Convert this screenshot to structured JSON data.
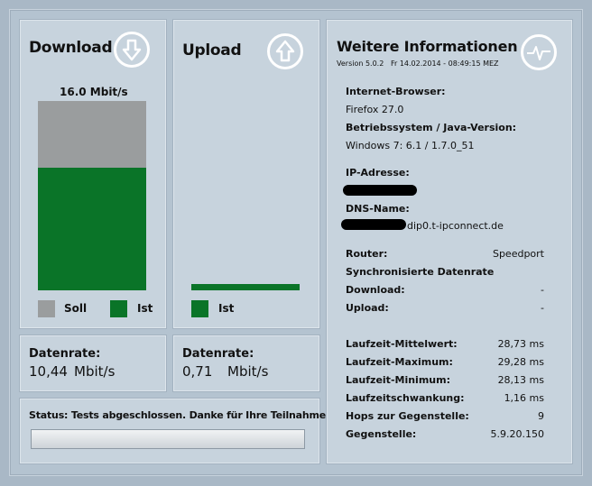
{
  "download": {
    "title": "Download",
    "icon": "download-arrow-icon",
    "speed_label": "16.0 Mbit/s",
    "measured_fraction": 0.65,
    "legend_soll": "Soll",
    "legend_ist": "Ist"
  },
  "upload": {
    "title": "Upload",
    "icon": "upload-arrow-icon",
    "legend_ist": "Ist"
  },
  "rates": {
    "download": {
      "label": "Datenrate:",
      "value": "10,44",
      "unit": "Mbit/s"
    },
    "upload": {
      "label": "Datenrate:",
      "value": "0,71",
      "unit": "Mbit/s"
    }
  },
  "status": {
    "text": "Status: Tests abgeschlossen. Danke für Ihre Teilnahme!"
  },
  "info": {
    "title": "Weitere Informationen",
    "icon": "pulse-monitor-icon",
    "version": "Version 5.0.2",
    "timestamp": "Fr 14.02.2014 - 08:49:15 MEZ",
    "browser_label": "Internet-Browser:",
    "browser_value": "Firefox 27.0",
    "os_label": "Betriebssystem / Java-Version:",
    "os_value": "Windows 7: 6.1 / 1.7.0_51",
    "ip_label": "IP-Adresse:",
    "dns_label": "DNS-Name:",
    "dns_value_visible": "dip0.t-ipconnect.de",
    "router_label": "Router:",
    "router_value": "Speedport",
    "sync_label": "Synchronisierte Datenrate",
    "sync_download_label": "Download:",
    "sync_download_value": "-",
    "sync_upload_label": "Upload:",
    "sync_upload_value": "-",
    "latency_avg_label": "Laufzeit-Mittelwert:",
    "latency_avg_value": "28,73 ms",
    "latency_max_label": "Laufzeit-Maximum:",
    "latency_max_value": "29,28 ms",
    "latency_min_label": "Laufzeit-Minimum:",
    "latency_min_value": "28,13 ms",
    "jitter_label": "Laufzeitschwankung:",
    "jitter_value": "1,16 ms",
    "hops_label": "Hops zur Gegenstelle:",
    "hops_value": "9",
    "remote_label": "Gegenstelle:",
    "remote_value": "5.9.20.150"
  },
  "colors": {
    "bar_ist": "#0a7428",
    "bar_soll": "#9a9d9e",
    "panel": "#c7d3dd"
  }
}
